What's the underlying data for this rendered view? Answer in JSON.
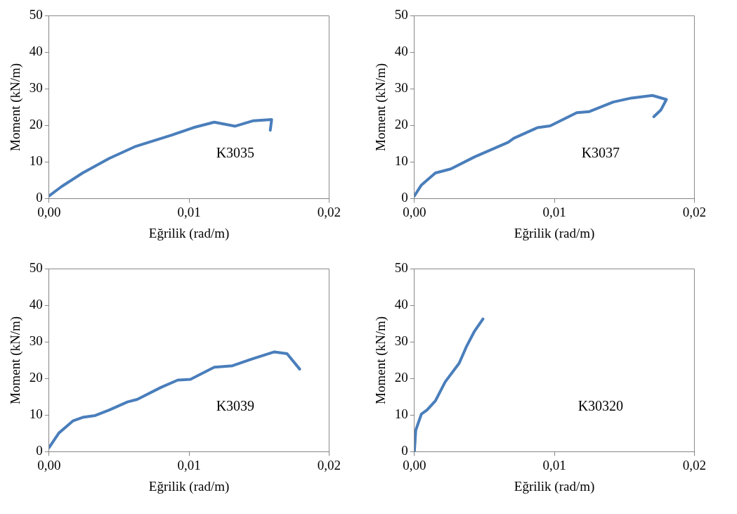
{
  "chart_data": [
    {
      "type": "line",
      "xlabel": "Eğrilik (rad/m)",
      "ylabel": "Moment (kN/m)",
      "xlim": [
        0,
        0.02
      ],
      "xticks": [
        {
          "value": 0,
          "label": "0,00"
        },
        {
          "value": 0.01,
          "label": "0,01"
        },
        {
          "value": 0.02,
          "label": "0,02"
        }
      ],
      "ylim": [
        0,
        50
      ],
      "yticks": [
        0,
        10,
        20,
        30,
        40,
        50
      ],
      "grid": false,
      "legend": false,
      "marker": "none",
      "line_style": "solid",
      "series": [
        {
          "color": "#4a7ebb",
          "x": [
            0,
            0.0009,
            0.0024,
            0.0043,
            0.0062,
            0.0088,
            0.0103,
            0.0118,
            0.0133,
            0.0146,
            0.0159,
            0.0158
          ],
          "values": [
            0.7,
            3.3,
            7.0,
            11.0,
            14.3,
            17.4,
            19.4,
            20.9,
            19.8,
            21.3,
            21.6,
            18.7
          ]
        }
      ],
      "annotations": [
        "K3035"
      ]
    },
    {
      "type": "line",
      "xlabel": "Eğrilik (rad/m)",
      "ylabel": "Moment (kN/m)",
      "xlim": [
        0,
        0.02
      ],
      "xticks": [
        {
          "value": 0,
          "label": "0,00"
        },
        {
          "value": 0.01,
          "label": "0,01"
        },
        {
          "value": 0.02,
          "label": "0,02"
        }
      ],
      "ylim": [
        0,
        50
      ],
      "yticks": [
        0,
        10,
        20,
        30,
        40,
        50
      ],
      "grid": false,
      "legend": false,
      "marker": "none",
      "line_style": "solid",
      "series": [
        {
          "color": "#4a7ebb",
          "x": [
            0,
            0.0005,
            0.0015,
            0.0026,
            0.0043,
            0.0067,
            0.0071,
            0.0088,
            0.0097,
            0.0116,
            0.0125,
            0.0142,
            0.0155,
            0.017,
            0.018,
            0.0176,
            0.0171
          ],
          "values": [
            0.7,
            3.7,
            7.0,
            8.1,
            11.4,
            15.4,
            16.5,
            19.4,
            19.9,
            23.5,
            23.8,
            26.4,
            27.5,
            28.2,
            27.1,
            24.2,
            22.4
          ]
        }
      ],
      "annotations": [
        "K3037"
      ]
    },
    {
      "type": "line",
      "xlabel": "Eğrilik (rad/m)",
      "ylabel": "Moment (kN/m)",
      "xlim": [
        0,
        0.02
      ],
      "xticks": [
        {
          "value": 0,
          "label": "0,00"
        },
        {
          "value": 0.01,
          "label": "0,01"
        },
        {
          "value": 0.02,
          "label": "0,02"
        }
      ],
      "ylim": [
        0,
        50
      ],
      "yticks": [
        0,
        10,
        20,
        30,
        40,
        50
      ],
      "grid": false,
      "legend": false,
      "marker": "none",
      "line_style": "solid",
      "series": [
        {
          "color": "#4a7ebb",
          "x": [
            0,
            0.0007,
            0.0017,
            0.0024,
            0.0033,
            0.0043,
            0.0056,
            0.0063,
            0.008,
            0.0092,
            0.0101,
            0.0118,
            0.0131,
            0.0146,
            0.0161,
            0.017,
            0.0179
          ],
          "values": [
            1.1,
            5.1,
            8.4,
            9.4,
            9.9,
            11.4,
            13.6,
            14.3,
            17.6,
            19.6,
            19.8,
            23.1,
            23.5,
            25.5,
            27.3,
            26.8,
            22.6
          ]
        }
      ],
      "annotations": [
        "K3039"
      ]
    },
    {
      "type": "line",
      "xlabel": "Eğrilik (rad/m)",
      "ylabel": "Moment (kN/m)",
      "xlim": [
        0,
        0.02
      ],
      "xticks": [
        {
          "value": 0,
          "label": "0,00"
        },
        {
          "value": 0.01,
          "label": "0,01"
        },
        {
          "value": 0.02,
          "label": "0,02"
        }
      ],
      "ylim": [
        0,
        50
      ],
      "yticks": [
        0,
        10,
        20,
        30,
        40,
        50
      ],
      "grid": false,
      "legend": false,
      "marker": "none",
      "line_style": "solid",
      "series": [
        {
          "color": "#4a7ebb",
          "x": [
            0,
            0.0001,
            0.0005,
            0.0009,
            0.0015,
            0.0022,
            0.0032,
            0.0037,
            0.0043,
            0.0049
          ],
          "values": [
            0,
            5.9,
            10.3,
            11.4,
            13.9,
            19.1,
            24.2,
            28.6,
            33.0,
            36.3
          ]
        }
      ],
      "annotations": [
        "K30320"
      ]
    }
  ]
}
